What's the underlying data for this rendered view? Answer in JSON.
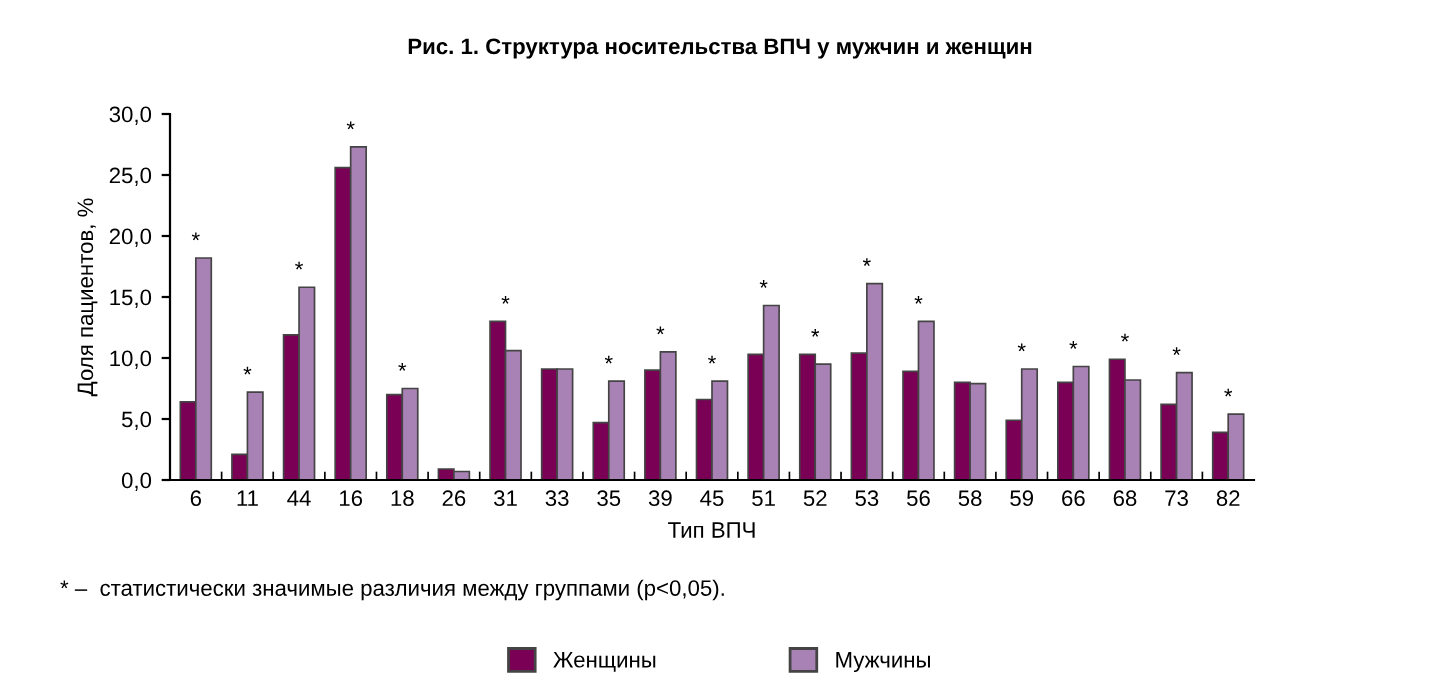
{
  "chart_data": {
    "type": "bar",
    "title": "Рис. 1. Структура носительства ВПЧ у мужчин и женщин",
    "xlabel": "Тип ВПЧ",
    "ylabel": "Доля пациентов, %",
    "categories": [
      "6",
      "11",
      "44",
      "16",
      "18",
      "26",
      "31",
      "33",
      "35",
      "39",
      "45",
      "51",
      "52",
      "53",
      "56",
      "58",
      "59",
      "66",
      "68",
      "73",
      "82"
    ],
    "series": [
      {
        "name": "Женщины",
        "color": "#7a0055",
        "values": [
          6.4,
          2.1,
          11.9,
          25.6,
          7.0,
          0.9,
          13.0,
          9.1,
          4.7,
          9.0,
          6.6,
          10.3,
          10.3,
          10.4,
          8.9,
          8.0,
          4.9,
          8.0,
          9.9,
          6.2,
          3.9
        ]
      },
      {
        "name": "Мужчины",
        "color": "#a882b4",
        "values": [
          18.2,
          7.2,
          15.8,
          27.3,
          7.5,
          0.7,
          10.6,
          9.1,
          8.1,
          10.5,
          8.1,
          14.3,
          9.5,
          16.1,
          13.0,
          7.9,
          9.1,
          9.3,
          8.2,
          8.8,
          5.4
        ]
      }
    ],
    "ylim": [
      0,
      30
    ],
    "yticks": [
      {
        "value": 0,
        "label": "0,0"
      },
      {
        "value": 5,
        "label": "5,0"
      },
      {
        "value": 10,
        "label": "10,0"
      },
      {
        "value": 15,
        "label": "15,0"
      },
      {
        "value": 20,
        "label": "20,0"
      },
      {
        "value": 25,
        "label": "25,0"
      },
      {
        "value": 30,
        "label": "30,0"
      }
    ],
    "grid": false,
    "legend": "bottom",
    "annotations": [
      {
        "text": "*",
        "x": "6",
        "y": 18.2
      },
      {
        "text": "*",
        "x": "11",
        "y": 7.2
      },
      {
        "text": "*",
        "x": "44",
        "y": 15.8
      },
      {
        "text": "*",
        "x": "16",
        "y": 27.3
      },
      {
        "text": "*",
        "x": "18",
        "y": 7.5
      },
      {
        "text": "*",
        "x": "31",
        "y": 13.0
      },
      {
        "text": "*",
        "x": "35",
        "y": 8.1
      },
      {
        "text": "*",
        "x": "39",
        "y": 10.5
      },
      {
        "text": "*",
        "x": "45",
        "y": 8.1
      },
      {
        "text": "*",
        "x": "51",
        "y": 14.3
      },
      {
        "text": "*",
        "x": "52",
        "y": 10.3
      },
      {
        "text": "*",
        "x": "53",
        "y": 16.1
      },
      {
        "text": "*",
        "x": "56",
        "y": 13.0
      },
      {
        "text": "*",
        "x": "59",
        "y": 9.1
      },
      {
        "text": "*",
        "x": "66",
        "y": 9.3
      },
      {
        "text": "*",
        "x": "68",
        "y": 9.9
      },
      {
        "text": "*",
        "x": "73",
        "y": 8.8
      },
      {
        "text": "*",
        "x": "82",
        "y": 5.4
      },
      "* –  статистически значимые различия между группами (p<0,05)."
    ]
  }
}
